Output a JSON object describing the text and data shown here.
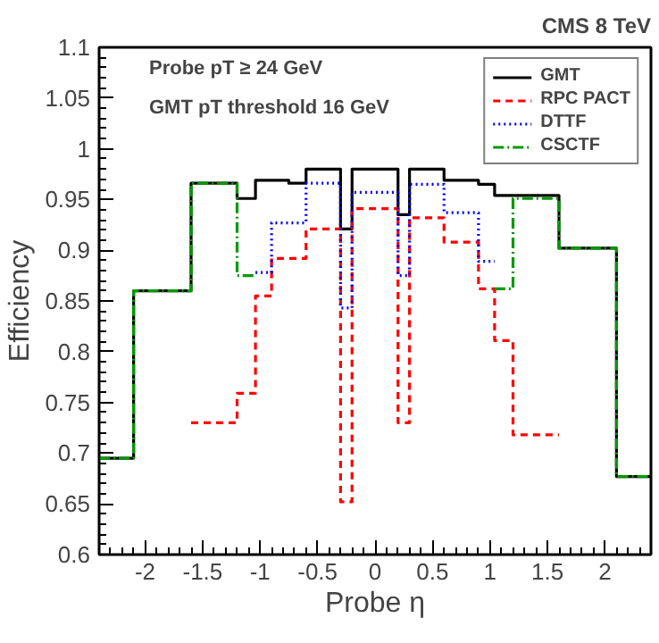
{
  "chart_data": {
    "type": "step",
    "title": "CMS 8 TeV",
    "xlabel": "Probe η",
    "ylabel": "Efficiency",
    "annotations": [
      "Probe pT ≥ 24 GeV",
      "GMT pT threshold 16 GeV"
    ],
    "xlim": [
      -2.4,
      2.4
    ],
    "ylim": [
      0.6,
      1.1
    ],
    "xticks": [
      -2,
      -1.5,
      -1,
      -0.5,
      0,
      0.5,
      1,
      1.5,
      2
    ],
    "yticks": [
      0.6,
      0.65,
      0.7,
      0.75,
      0.8,
      0.85,
      0.9,
      0.95,
      1,
      1.05,
      1.1
    ],
    "grid": false,
    "legend": "top right",
    "series": [
      {
        "name": "GMT",
        "color": "#000000",
        "line_style": "solid",
        "x": [
          -2.4,
          -2.1,
          -1.6,
          -1.2,
          -1.04,
          -0.75,
          -0.6,
          -0.3,
          -0.2,
          0.2,
          0.3,
          0.6,
          0.9,
          1.04,
          1.6,
          2.1,
          2.4
        ],
        "values": [
          0.695,
          0.86,
          0.966,
          0.951,
          0.969,
          0.966,
          0.98,
          0.921,
          0.98,
          0.935,
          0.98,
          0.969,
          0.965,
          0.954,
          0.902,
          0.677,
          0.677
        ]
      },
      {
        "name": "RPC PACT",
        "color": "#ff0000",
        "line_style": "dashed",
        "x": [
          -1.6,
          -1.2,
          -1.04,
          -0.9,
          -0.6,
          -0.3,
          -0.2,
          0.2,
          0.3,
          0.6,
          0.9,
          1.04,
          1.2,
          1.6
        ],
        "values": [
          0.73,
          0.759,
          0.855,
          0.892,
          0.921,
          0.652,
          0.941,
          0.73,
          0.932,
          0.908,
          0.862,
          0.811,
          0.718,
          0.718
        ]
      },
      {
        "name": "DTTF",
        "color": "#0000ff",
        "line_style": "dotted",
        "x": [
          -1.04,
          -0.9,
          -0.6,
          -0.3,
          -0.2,
          0.2,
          0.3,
          0.6,
          0.9,
          1.04
        ],
        "values": [
          0.878,
          0.927,
          0.966,
          0.843,
          0.957,
          0.875,
          0.965,
          0.937,
          0.889,
          0.889
        ]
      },
      {
        "name": "CSCTF",
        "color": "#009900",
        "line_style": "dashdot",
        "x": [
          -2.4,
          -2.1,
          -1.6,
          -1.2,
          -1.04,
          1.04,
          1.2,
          1.6,
          2.1,
          2.4
        ],
        "values": [
          0.695,
          0.86,
          0.966,
          0.875,
          null,
          0.862,
          0.951,
          0.902,
          0.677,
          0.677
        ]
      }
    ]
  }
}
